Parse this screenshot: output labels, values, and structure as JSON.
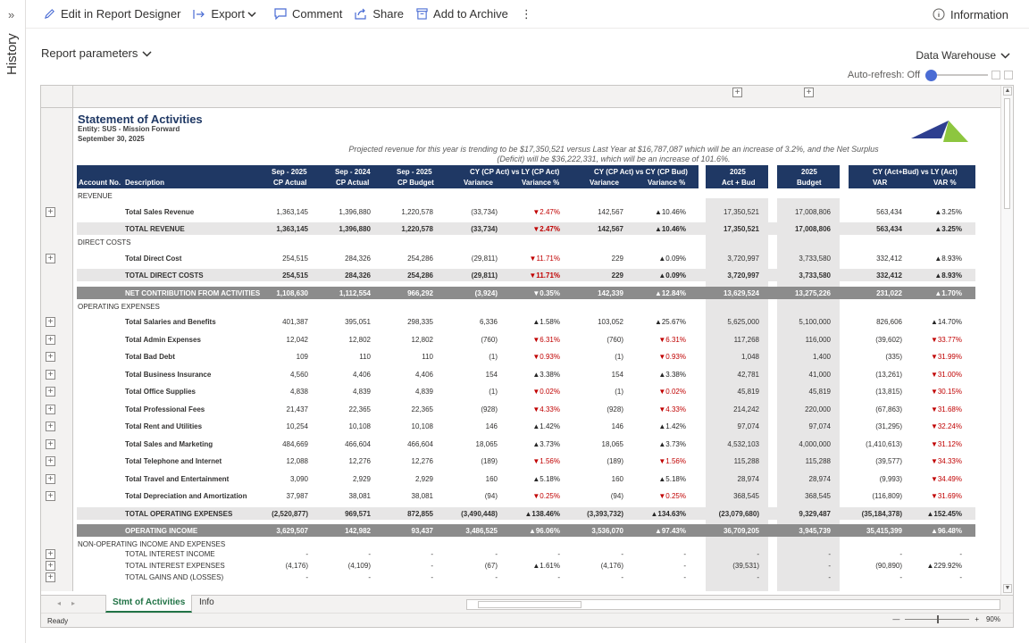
{
  "history_rail": {
    "expand_glyph": "»",
    "label": "History"
  },
  "toolbar": {
    "edit": "Edit in Report Designer",
    "export": "Export",
    "comment": "Comment",
    "share": "Share",
    "archive": "Add to Archive",
    "more": "⋮",
    "information": "Information"
  },
  "params": {
    "label": "Report parameters"
  },
  "source": {
    "label": "Data Warehouse"
  },
  "autorefresh": {
    "label": "Auto-refresh: Off"
  },
  "report": {
    "title": "Statement of Activities",
    "entity": "Entity: SUS - Mission Forward",
    "date": "September 30, 2025",
    "note_line1": "Projected revenue for this year is trending to be $17,350,521 versus Last Year at $16,787,087 which will be  an increase of 3.2%, and the Net Surplus",
    "note_line2": "(Deficit) will be $36,222,331, which will be an increase of 101.6%.",
    "headers": {
      "account_no": "Account No.",
      "description": "Description",
      "c1_top": "Sep - 2025",
      "c1_bot": "CP Actual",
      "c2_top": "Sep - 2024",
      "c2_bot": "CP Actual",
      "c3_top": "Sep - 2025",
      "c3_bot": "CP Budget",
      "g1_top": "CY (CP Act) vs LY (CP Act)",
      "g1_var": "Variance",
      "g1_pct": "Variance %",
      "g2_top": "CY (CP Act) vs CY (CP Bud)",
      "g2_var": "Variance",
      "g2_pct": "Variance %",
      "c8_top": "2025",
      "c8_bot": "Act + Bud",
      "c9_top": "2025",
      "c9_bot": "Budget",
      "g3_top": "CY (Act+Bud) vs LY (Act)",
      "g3_var": "VAR",
      "g3_pct": "VAR %"
    },
    "rows": [
      {
        "kind": "section",
        "label": "REVENUE"
      },
      {
        "kind": "item",
        "expand": true,
        "label": "Total Sales Revenue",
        "v": [
          "1,363,145",
          "1,396,880",
          "1,220,578",
          "(33,734)",
          "▼2.47%",
          "142,567",
          "▲10.46%",
          "17,350,521",
          "17,008,806",
          "563,434",
          "▲3.25%"
        ]
      },
      {
        "kind": "total",
        "label": "TOTAL REVENUE",
        "v": [
          "1,363,145",
          "1,396,880",
          "1,220,578",
          "(33,734)",
          "▼2.47%",
          "142,567",
          "▲10.46%",
          "17,350,521",
          "17,008,806",
          "563,434",
          "▲3.25%"
        ]
      },
      {
        "kind": "section",
        "label": "DIRECT COSTS"
      },
      {
        "kind": "item",
        "expand": true,
        "label": "Total Direct Cost",
        "v": [
          "254,515",
          "284,326",
          "254,286",
          "(29,811)",
          "▼11.71%",
          "229",
          "▲0.09%",
          "3,720,997",
          "3,733,580",
          "332,412",
          "▲8.93%"
        ]
      },
      {
        "kind": "total",
        "label": "TOTAL DIRECT COSTS",
        "v": [
          "254,515",
          "284,326",
          "254,286",
          "(29,811)",
          "▼11.71%",
          "229",
          "▲0.09%",
          "3,720,997",
          "3,733,580",
          "332,412",
          "▲8.93%"
        ]
      },
      {
        "kind": "dark",
        "label": "NET CONTRIBUTION FROM ACTIVITIES",
        "v": [
          "1,108,630",
          "1,112,554",
          "966,292",
          "(3,924)",
          "▼0.35%",
          "142,339",
          "▲12.84%",
          "13,629,524",
          "13,275,226",
          "231,022",
          "▲1.70%"
        ]
      },
      {
        "kind": "section",
        "label": "OPERATING EXPENSES"
      },
      {
        "kind": "item",
        "expand": true,
        "label": "Total Salaries and Benefits",
        "v": [
          "401,387",
          "395,051",
          "298,335",
          "6,336",
          "▲1.58%",
          "103,052",
          "▲25.67%",
          "5,625,000",
          "5,100,000",
          "826,606",
          "▲14.70%"
        ]
      },
      {
        "kind": "item",
        "expand": true,
        "label": "Total Admin Expenses",
        "v": [
          "12,042",
          "12,802",
          "12,802",
          "(760)",
          "▼6.31%",
          "(760)",
          "▼6.31%",
          "117,268",
          "116,000",
          "(39,602)",
          "▼33.77%"
        ]
      },
      {
        "kind": "item",
        "expand": true,
        "label": "Total Bad Debt",
        "v": [
          "109",
          "110",
          "110",
          "(1)",
          "▼0.93%",
          "(1)",
          "▼0.93%",
          "1,048",
          "1,400",
          "(335)",
          "▼31.99%"
        ]
      },
      {
        "kind": "item",
        "expand": true,
        "label": "Total Business Insurance",
        "v": [
          "4,560",
          "4,406",
          "4,406",
          "154",
          "▲3.38%",
          "154",
          "▲3.38%",
          "42,781",
          "41,000",
          "(13,261)",
          "▼31.00%"
        ]
      },
      {
        "kind": "item",
        "expand": true,
        "label": "Total Office Supplies",
        "v": [
          "4,838",
          "4,839",
          "4,839",
          "(1)",
          "▼0.02%",
          "(1)",
          "▼0.02%",
          "45,819",
          "45,819",
          "(13,815)",
          "▼30.15%"
        ]
      },
      {
        "kind": "item",
        "expand": true,
        "label": "Total Professional Fees",
        "v": [
          "21,437",
          "22,365",
          "22,365",
          "(928)",
          "▼4.33%",
          "(928)",
          "▼4.33%",
          "214,242",
          "220,000",
          "(67,863)",
          "▼31.68%"
        ]
      },
      {
        "kind": "item",
        "expand": true,
        "label": "Total Rent and Utilities",
        "v": [
          "10,254",
          "10,108",
          "10,108",
          "146",
          "▲1.42%",
          "146",
          "▲1.42%",
          "97,074",
          "97,074",
          "(31,295)",
          "▼32.24%"
        ]
      },
      {
        "kind": "item",
        "expand": true,
        "label": "Total Sales and Marketing",
        "v": [
          "484,669",
          "466,604",
          "466,604",
          "18,065",
          "▲3.73%",
          "18,065",
          "▲3.73%",
          "4,532,103",
          "4,000,000",
          "(1,410,613)",
          "▼31.12%"
        ]
      },
      {
        "kind": "item",
        "expand": true,
        "label": "Total Telephone and Internet",
        "v": [
          "12,088",
          "12,276",
          "12,276",
          "(189)",
          "▼1.56%",
          "(189)",
          "▼1.56%",
          "115,288",
          "115,288",
          "(39,577)",
          "▼34.33%"
        ]
      },
      {
        "kind": "item",
        "expand": true,
        "label": "Total Travel and Entertainment",
        "v": [
          "3,090",
          "2,929",
          "2,929",
          "160",
          "▲5.18%",
          "160",
          "▲5.18%",
          "28,974",
          "28,974",
          "(9,993)",
          "▼34.49%"
        ]
      },
      {
        "kind": "item",
        "expand": true,
        "label": "Total Depreciation and Amortization",
        "v": [
          "37,987",
          "38,081",
          "38,081",
          "(94)",
          "▼0.25%",
          "(94)",
          "▼0.25%",
          "368,545",
          "368,545",
          "(116,809)",
          "▼31.69%"
        ]
      },
      {
        "kind": "total",
        "label": "TOTAL OPERATING EXPENSES",
        "v": [
          "(2,520,877)",
          "969,571",
          "872,855",
          "(3,490,448)",
          "▲138.46%",
          "(3,393,732)",
          "▲134.63%",
          "(23,079,680)",
          "9,329,487",
          "(35,184,378)",
          "▲152.45%"
        ]
      },
      {
        "kind": "dark",
        "label": "OPERATING INCOME",
        "v": [
          "3,629,507",
          "142,982",
          "93,437",
          "3,486,525",
          "▲96.06%",
          "3,536,070",
          "▲97.43%",
          "36,709,205",
          "3,945,739",
          "35,415,399",
          "▲96.48%"
        ]
      },
      {
        "kind": "section",
        "label": "NON-OPERATING INCOME AND EXPENSES"
      },
      {
        "kind": "small",
        "expand": true,
        "label": "TOTAL INTEREST INCOME",
        "v": [
          "-",
          "-",
          "-",
          "-",
          "-",
          "-",
          "-",
          "-",
          "-",
          "-",
          "-"
        ]
      },
      {
        "kind": "small",
        "expand": true,
        "label": "TOTAL INTEREST EXPENSES",
        "v": [
          "(4,176)",
          "(4,109)",
          "-",
          "(67)",
          "▲1.61%",
          "(4,176)",
          "-",
          "(39,531)",
          "-",
          "(90,890)",
          "▲229.92%"
        ]
      },
      {
        "kind": "small",
        "expand": true,
        "label": "TOTAL GAINS AND (LOSSES)",
        "v": [
          "-",
          "-",
          "-",
          "-",
          "-",
          "-",
          "-",
          "-",
          "-",
          "-",
          "-"
        ]
      }
    ]
  },
  "tabs": {
    "active": "Stmt of Activities",
    "other": "Info"
  },
  "status": {
    "ready": "Ready",
    "zoom_minus": "—",
    "zoom_plus": "+",
    "zoom": "90%"
  },
  "colors": {
    "header_navy": "#1f3864",
    "negative": "#c00000",
    "tab_green": "#217346"
  }
}
